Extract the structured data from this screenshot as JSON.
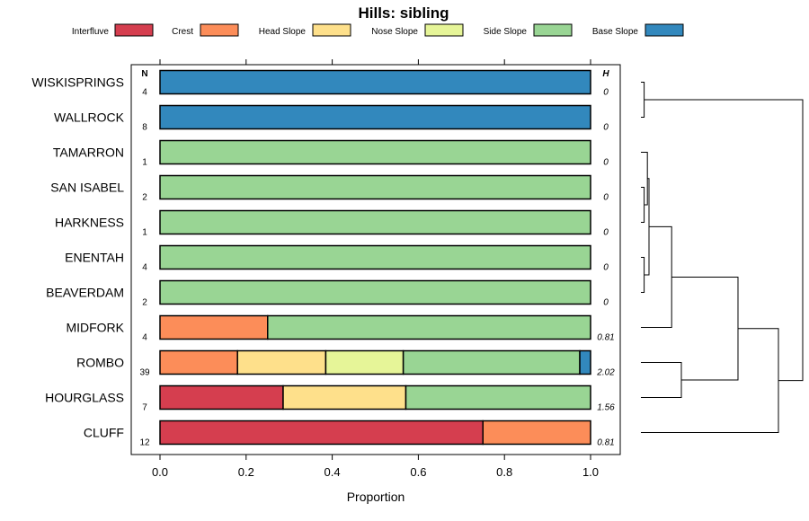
{
  "chart_data": {
    "type": "bar",
    "stacked": true,
    "orientation": "horizontal",
    "title": "Hills: sibling",
    "xlabel": "Proportion",
    "ylabel": "",
    "xlim": [
      0,
      1
    ],
    "x_ticks": [
      "0.0",
      "0.2",
      "0.4",
      "0.6",
      "0.8",
      "1.0"
    ],
    "n_header": "N",
    "h_header": "H",
    "legend_position": "top",
    "classes": [
      {
        "name": "Interfluve",
        "color": "#d53e4f"
      },
      {
        "name": "Crest",
        "color": "#fc8d59"
      },
      {
        "name": "Head Slope",
        "color": "#fee08b"
      },
      {
        "name": "Nose Slope",
        "color": "#e6f598"
      },
      {
        "name": "Side Slope",
        "color": "#99d594"
      },
      {
        "name": "Base Slope",
        "color": "#3288bd"
      }
    ],
    "rows": [
      {
        "label": "WISKISPRINGS",
        "n": "4",
        "h": "0",
        "values": [
          0,
          0,
          0,
          0,
          0,
          1.0
        ]
      },
      {
        "label": "WALLROCK",
        "n": "8",
        "h": "0",
        "values": [
          0,
          0,
          0,
          0,
          0,
          1.0
        ]
      },
      {
        "label": "TAMARRON",
        "n": "1",
        "h": "0",
        "values": [
          0,
          0,
          0,
          0,
          1.0,
          0
        ]
      },
      {
        "label": "SAN ISABEL",
        "n": "2",
        "h": "0",
        "values": [
          0,
          0,
          0,
          0,
          1.0,
          0
        ]
      },
      {
        "label": "HARKNESS",
        "n": "1",
        "h": "0",
        "values": [
          0,
          0,
          0,
          0,
          1.0,
          0
        ]
      },
      {
        "label": "ENENTAH",
        "n": "4",
        "h": "0",
        "values": [
          0,
          0,
          0,
          0,
          1.0,
          0
        ]
      },
      {
        "label": "BEAVERDAM",
        "n": "2",
        "h": "0",
        "values": [
          0,
          0,
          0,
          0,
          1.0,
          0
        ]
      },
      {
        "label": "MIDFORK",
        "n": "4",
        "h": "0.81",
        "values": [
          0,
          0.25,
          0,
          0,
          0.75,
          0
        ]
      },
      {
        "label": "ROMBO",
        "n": "39",
        "h": "2.02",
        "values": [
          0,
          0.18,
          0.205,
          0.18,
          0.41,
          0.025
        ]
      },
      {
        "label": "HOURGLASS",
        "n": "7",
        "h": "1.56",
        "values": [
          0.286,
          0,
          0.285,
          0,
          0.429,
          0
        ]
      },
      {
        "label": "CLUFF",
        "n": "12",
        "h": "0.81",
        "values": [
          0.75,
          0.25,
          0,
          0,
          0,
          0
        ]
      }
    ],
    "dendrogram": {
      "description": "hierarchical clustering of rows",
      "merges": [
        {
          "left": "WISKISPRINGS",
          "right": "WALLROCK",
          "height": 0.02
        },
        {
          "left": "SAN ISABEL",
          "right": "HARKNESS",
          "height": 0.02
        },
        {
          "left": "ENENTAH",
          "right": "BEAVERDAM",
          "height": 0.02
        },
        {
          "left": "TAMARRON",
          "right": "SAN ISABEL+HARKNESS",
          "height": 0.04
        },
        {
          "left": "TAMARRON+SAN ISABEL+HARKNESS",
          "right": "ENENTAH+BEAVERDAM",
          "height": 0.05
        },
        {
          "left": "(side slope group)",
          "right": "MIDFORK",
          "height": 0.19
        },
        {
          "left": "ROMBO",
          "right": "HOURGLASS",
          "height": 0.25
        },
        {
          "left": "(side slope group)+MIDFORK",
          "right": "ROMBO+HOURGLASS",
          "height": 0.6
        },
        {
          "left": "previous",
          "right": "CLUFF",
          "height": 0.85
        },
        {
          "left": "WISKISPRINGS+WALLROCK",
          "right": "rest",
          "height": 1.0
        }
      ]
    }
  }
}
